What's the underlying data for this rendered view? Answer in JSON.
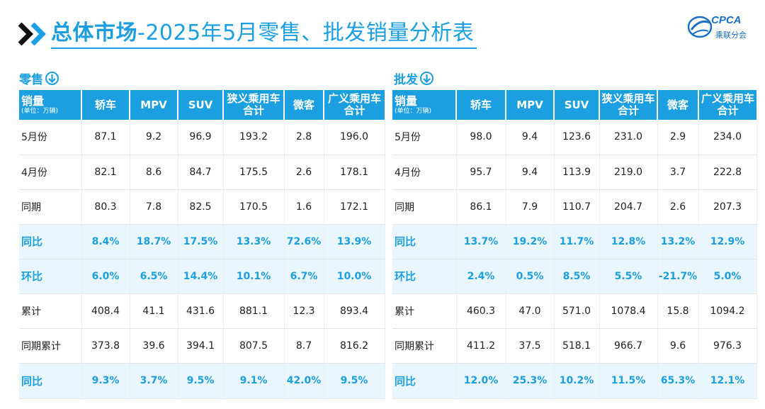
{
  "header": {
    "title_bold": "总体市场",
    "title_rest": "-2025年5月零售、批发销量分析表"
  },
  "logo": {
    "text": "CPCA",
    "cn": "乘联分会"
  },
  "retail": {
    "label": "零售",
    "head_main": "销量",
    "head_sub": "(单位：万辆)",
    "columns": [
      [
        "轿车"
      ],
      [
        "MPV"
      ],
      [
        "SUV"
      ],
      [
        "狭义乘用车",
        "合计"
      ],
      [
        "微客"
      ],
      [
        "广义乘用车",
        "合计"
      ]
    ],
    "rows": [
      {
        "label": "5月份",
        "values": [
          "87.1",
          "9.2",
          "96.9",
          "193.2",
          "2.8",
          "196.0"
        ],
        "highlight": false
      },
      {
        "label": "4月份",
        "values": [
          "82.1",
          "8.6",
          "84.7",
          "175.5",
          "2.6",
          "178.1"
        ],
        "highlight": false
      },
      {
        "label": "同期",
        "values": [
          "80.3",
          "7.8",
          "82.5",
          "170.5",
          "1.6",
          "172.1"
        ],
        "highlight": false
      },
      {
        "label": "同比",
        "values": [
          "8.4%",
          "18.7%",
          "17.5%",
          "13.3%",
          "72.6%",
          "13.9%"
        ],
        "highlight": true
      },
      {
        "label": "环比",
        "values": [
          "6.0%",
          "6.5%",
          "14.4%",
          "10.1%",
          "6.7%",
          "10.0%"
        ],
        "highlight": true
      },
      {
        "label": "累计",
        "values": [
          "408.4",
          "41.1",
          "431.6",
          "881.1",
          "12.3",
          "893.4"
        ],
        "highlight": false
      },
      {
        "label": "同期累计",
        "values": [
          "373.8",
          "39.6",
          "394.1",
          "807.5",
          "8.7",
          "816.2"
        ],
        "highlight": false
      },
      {
        "label": "同比",
        "values": [
          "9.3%",
          "3.7%",
          "9.5%",
          "9.1%",
          "42.0%",
          "9.5%"
        ],
        "highlight": true
      }
    ]
  },
  "wholesale": {
    "label": "批发",
    "head_main": "销量",
    "head_sub": "(单位：万辆)",
    "columns": [
      [
        "轿车"
      ],
      [
        "MPV"
      ],
      [
        "SUV"
      ],
      [
        "狭义乘用车",
        "合计"
      ],
      [
        "微客"
      ],
      [
        "广义乘用车",
        "合计"
      ]
    ],
    "rows": [
      {
        "label": "5月份",
        "values": [
          "98.0",
          "9.4",
          "123.6",
          "231.0",
          "2.9",
          "234.0"
        ],
        "highlight": false
      },
      {
        "label": "4月份",
        "values": [
          "95.7",
          "9.4",
          "113.9",
          "219.0",
          "3.7",
          "222.8"
        ],
        "highlight": false
      },
      {
        "label": "同期",
        "values": [
          "86.1",
          "7.9",
          "110.7",
          "204.7",
          "2.6",
          "207.3"
        ],
        "highlight": false
      },
      {
        "label": "同比",
        "values": [
          "13.7%",
          "19.2%",
          "11.7%",
          "12.8%",
          "13.2%",
          "12.9%"
        ],
        "highlight": true
      },
      {
        "label": "环比",
        "values": [
          "2.4%",
          "0.5%",
          "8.5%",
          "5.5%",
          "-21.7%",
          "5.0%"
        ],
        "highlight": true
      },
      {
        "label": "累计",
        "values": [
          "460.3",
          "47.0",
          "571.0",
          "1078.4",
          "15.8",
          "1094.2"
        ],
        "highlight": false
      },
      {
        "label": "同期累计",
        "values": [
          "411.2",
          "37.5",
          "518.1",
          "966.7",
          "9.6",
          "976.3"
        ],
        "highlight": false
      },
      {
        "label": "同比",
        "values": [
          "12.0%",
          "25.3%",
          "10.2%",
          "11.5%",
          "65.3%",
          "12.1%"
        ],
        "highlight": true
      }
    ]
  }
}
